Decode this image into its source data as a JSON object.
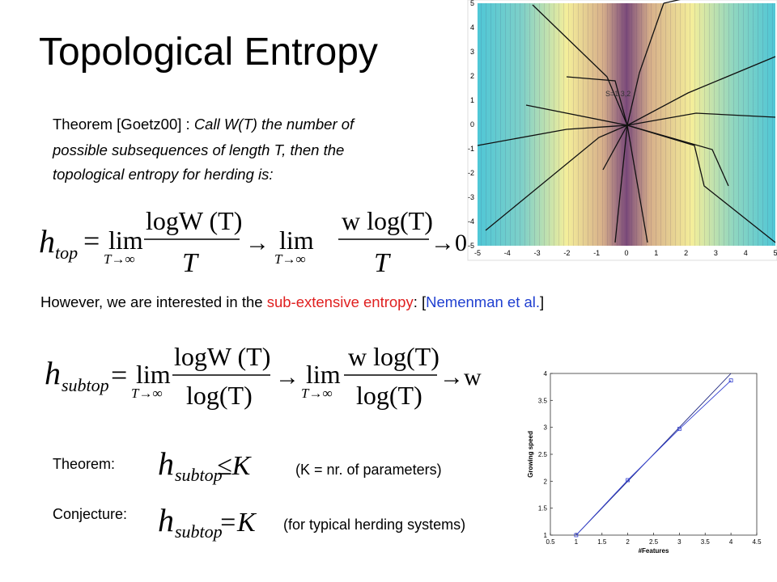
{
  "title": "Topological Entropy",
  "theorem": {
    "lead": "Theorem [Goetz00]  : ",
    "lines": [
      "Call W(T) the number of",
      "possible subsequences of length T,  then the",
      "topological entropy for herding is:"
    ]
  },
  "equation1": {
    "h": "h",
    "sub": "top",
    "eq": "=",
    "lim1": "lim",
    "under1": "T→∞",
    "num1": "logW (T)",
    "den1": "T",
    "arrow": "→",
    "lim2": "lim",
    "under2": "T→∞",
    "num2": "w log(T)",
    "den2": "T",
    "tail": "→0"
  },
  "however": {
    "parts": [
      "However, we are interested in the ",
      "sub-extensive entropy",
      ":  [",
      "Nemenman et al.",
      "]"
    ]
  },
  "equation2": {
    "h": "h",
    "sub": "subtop",
    "eq": "=",
    "lim1": "lim",
    "under1": "T→∞",
    "num1": "logW (T)",
    "den1": "log(T)",
    "arrow": "→",
    "lim2": "lim",
    "under2": "T→∞",
    "num2": "w log(T)",
    "den2": "log(T)",
    "tail": "→w"
  },
  "theorem2": {
    "label": "Theorem:",
    "h": "h",
    "sub": "subtop",
    "rel": "≤K",
    "note": "(K = nr. of parameters)"
  },
  "conjecture": {
    "label": "Conjecture:",
    "h": "h",
    "sub": "subtop",
    "rel": "=K",
    "note": "(for typical herding systems)"
  },
  "contour_plot": {
    "xticks": [
      -5,
      -4,
      -3,
      -2,
      -1,
      0,
      1,
      2,
      3,
      4,
      5
    ],
    "yticks": [
      -5,
      -4,
      -3,
      -2,
      -1,
      0,
      1,
      2,
      3,
      4,
      5
    ],
    "annotation": "S=1,3,2"
  },
  "chart_data": {
    "type": "line",
    "xlabel": "#Features",
    "ylabel": "Growing speed",
    "x": [
      1,
      2,
      3,
      4
    ],
    "series": [
      {
        "color": "#1a237e",
        "values": [
          1,
          2,
          3,
          4
        ]
      },
      {
        "color": "#3340d0",
        "marker": "square",
        "values": [
          1,
          2.02,
          2.97,
          3.87
        ]
      }
    ],
    "xlim": [
      0.5,
      4.5
    ],
    "xticks": [
      0.5,
      1,
      1.5,
      2,
      2.5,
      3,
      3.5,
      4,
      4.5
    ],
    "ylim": [
      1,
      4
    ],
    "yticks": [
      1,
      1.5,
      2,
      2.5,
      3,
      3.5,
      4
    ]
  }
}
